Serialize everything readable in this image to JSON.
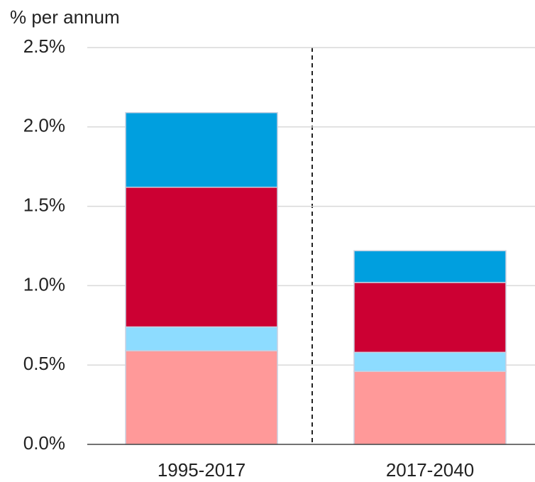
{
  "chart_data": {
    "type": "stacked_bar",
    "y_axis_label": "% per annum",
    "categories": [
      "1995-2017",
      "2017-2040"
    ],
    "series": [
      {
        "color": "#ff9999",
        "values": [
          0.59,
          0.46
        ]
      },
      {
        "color": "#8ddcff",
        "values": [
          0.15,
          0.12
        ]
      },
      {
        "color": "#cc0033",
        "values": [
          0.88,
          0.44
        ]
      },
      {
        "color": "#009fdf",
        "values": [
          0.47,
          0.2
        ]
      }
    ],
    "ylim": [
      0,
      2.5
    ],
    "yticks": [
      {
        "value": 0,
        "label": "0.0%"
      },
      {
        "value": 0.5,
        "label": "0.5%"
      },
      {
        "value": 1,
        "label": "1.0%"
      },
      {
        "value": 1.5,
        "label": "1.5%"
      },
      {
        "value": 2,
        "label": "2.0%"
      },
      {
        "value": 2.5,
        "label": "2.5%"
      }
    ],
    "grid": true
  }
}
